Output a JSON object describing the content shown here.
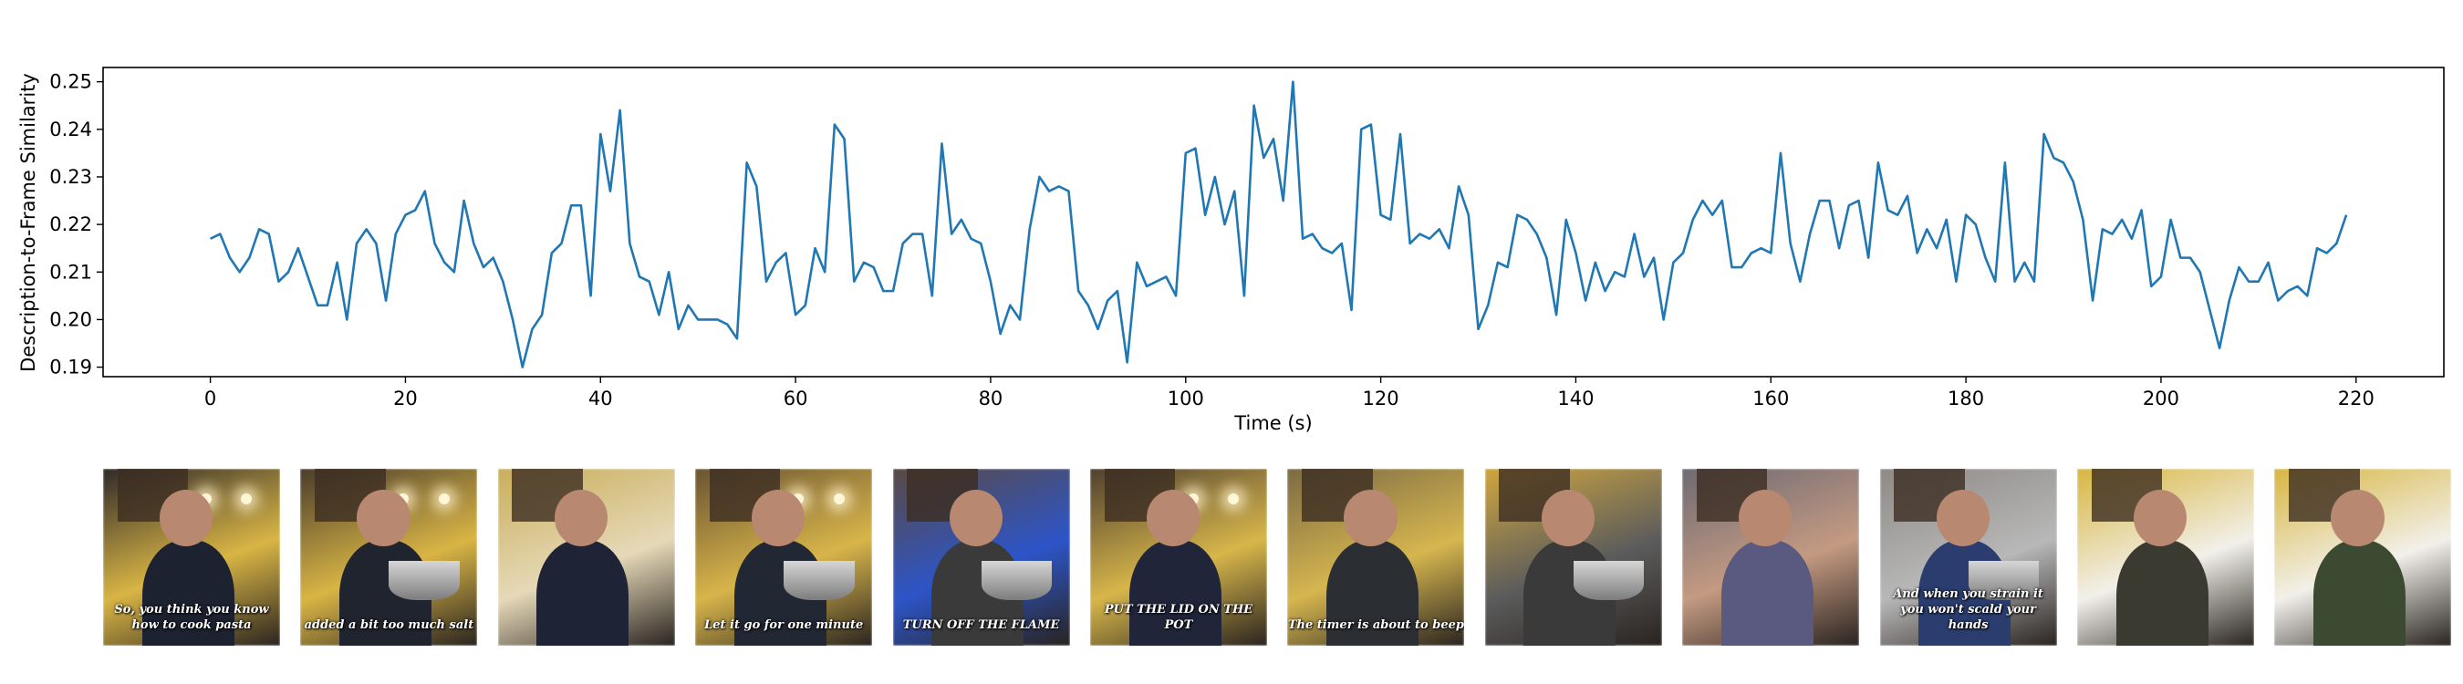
{
  "colors": {
    "line": "#1f77b4",
    "axes": "#000000",
    "background": "#ffffff"
  },
  "chart_data": {
    "type": "line",
    "title": "",
    "xlabel": "Time (s)",
    "ylabel": "Description-to-Frame Similarity",
    "xlim": [
      -11,
      229
    ],
    "ylim": [
      0.188,
      0.253
    ],
    "xticks": [
      0,
      20,
      40,
      60,
      80,
      100,
      120,
      140,
      160,
      180,
      200,
      220
    ],
    "yticks": [
      0.19,
      0.2,
      0.21,
      0.22,
      0.23,
      0.24,
      0.25
    ],
    "xtick_labels": [
      "0",
      "20",
      "40",
      "60",
      "80",
      "100",
      "120",
      "140",
      "160",
      "180",
      "200",
      "220"
    ],
    "ytick_labels": [
      "0.19",
      "0.20",
      "0.21",
      "0.22",
      "0.23",
      "0.24",
      "0.25"
    ],
    "grid": false,
    "legend": "none",
    "series": [
      {
        "x": [
          0,
          1,
          2,
          3,
          4,
          5,
          6,
          7,
          8,
          9,
          10,
          11,
          12,
          13,
          14,
          15,
          16,
          17,
          18,
          19,
          20,
          21,
          22,
          23,
          24,
          25,
          26,
          27,
          28,
          29,
          30,
          31,
          32,
          33,
          34,
          35,
          36,
          37,
          38,
          39,
          40,
          41,
          42,
          43,
          44,
          45,
          46,
          47,
          48,
          49,
          50,
          51,
          52,
          53,
          54,
          55,
          56,
          57,
          58,
          59,
          60,
          61,
          62,
          63,
          64,
          65,
          66,
          67,
          68,
          69,
          70,
          71,
          72,
          73,
          74,
          75,
          76,
          77,
          78,
          79,
          80,
          81,
          82,
          83,
          84,
          85,
          86,
          87,
          88,
          89,
          90,
          91,
          92,
          93,
          94,
          95,
          96,
          97,
          98,
          99,
          100,
          101,
          102,
          103,
          104,
          105,
          106,
          107,
          108,
          109,
          110,
          111,
          112,
          113,
          114,
          115,
          116,
          117,
          118,
          119,
          120,
          121,
          122,
          123,
          124,
          125,
          126,
          127,
          128,
          129,
          130,
          131,
          132,
          133,
          134,
          135,
          136,
          137,
          138,
          139,
          140,
          141,
          142,
          143,
          144,
          145,
          146,
          147,
          148,
          149,
          150,
          151,
          152,
          153,
          154,
          155,
          156,
          157,
          158,
          159,
          160,
          161,
          162,
          163,
          164,
          165,
          166,
          167,
          168,
          169,
          170,
          171,
          172,
          173,
          174,
          175,
          176,
          177,
          178,
          179,
          180,
          181,
          182,
          183,
          184,
          185,
          186,
          187,
          188,
          189,
          190,
          191,
          192,
          193,
          194,
          195,
          196,
          197,
          198,
          199,
          200,
          201,
          202,
          203,
          204,
          205,
          206,
          207,
          208,
          209,
          210,
          211,
          212,
          213,
          214,
          215,
          216,
          217,
          218,
          219
        ],
        "y": [
          0.217,
          0.218,
          0.213,
          0.21,
          0.213,
          0.219,
          0.218,
          0.208,
          0.21,
          0.215,
          0.209,
          0.203,
          0.203,
          0.212,
          0.2,
          0.216,
          0.219,
          0.216,
          0.204,
          0.218,
          0.222,
          0.223,
          0.227,
          0.216,
          0.212,
          0.21,
          0.225,
          0.216,
          0.211,
          0.213,
          0.208,
          0.2,
          0.19,
          0.198,
          0.201,
          0.214,
          0.216,
          0.224,
          0.224,
          0.205,
          0.239,
          0.227,
          0.244,
          0.216,
          0.209,
          0.208,
          0.201,
          0.21,
          0.198,
          0.203,
          0.2,
          0.2,
          0.2,
          0.199,
          0.196,
          0.233,
          0.228,
          0.208,
          0.212,
          0.214,
          0.201,
          0.203,
          0.215,
          0.21,
          0.241,
          0.238,
          0.208,
          0.212,
          0.211,
          0.206,
          0.206,
          0.216,
          0.218,
          0.218,
          0.205,
          0.237,
          0.218,
          0.221,
          0.217,
          0.216,
          0.208,
          0.197,
          0.203,
          0.2,
          0.219,
          0.23,
          0.227,
          0.228,
          0.227,
          0.206,
          0.203,
          0.198,
          0.204,
          0.206,
          0.191,
          0.212,
          0.207,
          0.208,
          0.209,
          0.205,
          0.235,
          0.236,
          0.222,
          0.23,
          0.22,
          0.227,
          0.205,
          0.245,
          0.234,
          0.238,
          0.225,
          0.25,
          0.217,
          0.218,
          0.215,
          0.214,
          0.216,
          0.202,
          0.24,
          0.241,
          0.222,
          0.221,
          0.239,
          0.216,
          0.218,
          0.217,
          0.219,
          0.215,
          0.228,
          0.222,
          0.198,
          0.203,
          0.212,
          0.211,
          0.222,
          0.221,
          0.218,
          0.213,
          0.201,
          0.221,
          0.214,
          0.204,
          0.212,
          0.206,
          0.21,
          0.209,
          0.218,
          0.209,
          0.213,
          0.2,
          0.212,
          0.214,
          0.221,
          0.225,
          0.222,
          0.225,
          0.211,
          0.211,
          0.214,
          0.215,
          0.214,
          0.235,
          0.216,
          0.208,
          0.218,
          0.225,
          0.225,
          0.215,
          0.224,
          0.225,
          0.213,
          0.233,
          0.223,
          0.222,
          0.226,
          0.214,
          0.219,
          0.215,
          0.221,
          0.208,
          0.222,
          0.22,
          0.213,
          0.208,
          0.233,
          0.208,
          0.212,
          0.208,
          0.239,
          0.234,
          0.233,
          0.229,
          0.221,
          0.204,
          0.219,
          0.218,
          0.221,
          0.217,
          0.223,
          0.207,
          0.209,
          0.221,
          0.213,
          0.213,
          0.21,
          0.202,
          0.194,
          0.204,
          0.211,
          0.208,
          0.208,
          0.212,
          0.204,
          0.206,
          0.207,
          0.205,
          0.215,
          0.214,
          0.216,
          0.222
        ]
      }
    ]
  },
  "frames": [
    {
      "caption": "So, you think you know\nhow to cook pasta",
      "wall": "#2f2a2a",
      "accent": "#d9b545",
      "shirt": "#1d2230",
      "pot": false,
      "lights": true
    },
    {
      "caption": "added a bit too much salt",
      "wall": "#4a3d2c",
      "accent": "#d9b545",
      "shirt": "#20242e",
      "pot": true,
      "lights": true
    },
    {
      "caption": "",
      "wall": "#c9ae5a",
      "accent": "#e6d9b8",
      "shirt": "#1e2436",
      "pot": false,
      "lights": false
    },
    {
      "caption": "Let it go for one minute",
      "wall": "#6a5432",
      "accent": "#d8b54a",
      "shirt": "#222734",
      "pot": true,
      "lights": true
    },
    {
      "caption": "TURN OFF THE FLAME",
      "wall": "#5a4a44",
      "accent": "#2d55c8",
      "shirt": "#3a3a3a",
      "pot": true,
      "lights": false
    },
    {
      "caption": "PUT THE LID ON THE POT",
      "wall": "#4f4030",
      "accent": "#d7b64a",
      "shirt": "#20253a",
      "pot": false,
      "lights": true
    },
    {
      "caption": "The timer is about to beep",
      "wall": "#7c6a45",
      "accent": "#d6b64f",
      "shirt": "#2b2f33",
      "pot": false,
      "lights": false
    },
    {
      "caption": "",
      "wall": "#cfa640",
      "accent": "#5c5c5c",
      "shirt": "#3a3a3a",
      "pot": true,
      "lights": false
    },
    {
      "caption": "",
      "wall": "#6e6a73",
      "accent": "#c49a82",
      "shirt": "#5a5a80",
      "pot": false,
      "lights": false
    },
    {
      "caption": "And when you strain it\nyou won't scald your hands",
      "wall": "#8e8a86",
      "accent": "#b8b8b8",
      "shirt": "#2a3d6e",
      "pot": true,
      "lights": false
    },
    {
      "caption": "",
      "wall": "#d8b642",
      "accent": "#f2f0ea",
      "shirt": "#3a3a30",
      "pot": false,
      "lights": false
    },
    {
      "caption": "",
      "wall": "#d8b642",
      "accent": "#f2f0ea",
      "shirt": "#3c4a32",
      "pot": false,
      "lights": false
    }
  ]
}
